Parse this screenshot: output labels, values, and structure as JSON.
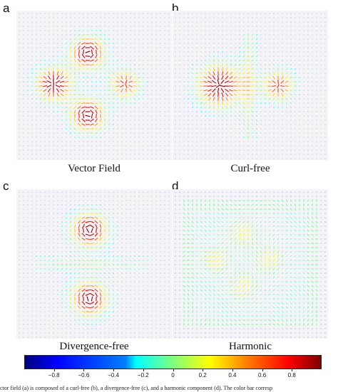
{
  "panels": [
    {
      "letter": "a",
      "caption": "Vector Field",
      "key": "vector-field"
    },
    {
      "letter": "b",
      "caption": "Curl-free",
      "key": "curl-free"
    },
    {
      "letter": "c",
      "caption": "Divergence-free",
      "key": "divergence-free"
    },
    {
      "letter": "d",
      "caption": "Harmonic",
      "key": "harmonic"
    }
  ],
  "colorbar": {
    "ticks": [
      "−0.8",
      "−0.6",
      "−0.4",
      "−0.2",
      "0",
      "0.2",
      "0.4",
      "0.6",
      "0.8"
    ],
    "colors": [
      "#00007f",
      "#0000ff",
      "#007fff",
      "#00ffff",
      "#7fff7f",
      "#ffff00",
      "#ff7f00",
      "#ff0000",
      "#7f0000"
    ]
  },
  "figure_caption": "ctor field (a) is composed of a curl-free (b), a divergence-free (c), and a harmonic component (d). The color bar corresp"
}
